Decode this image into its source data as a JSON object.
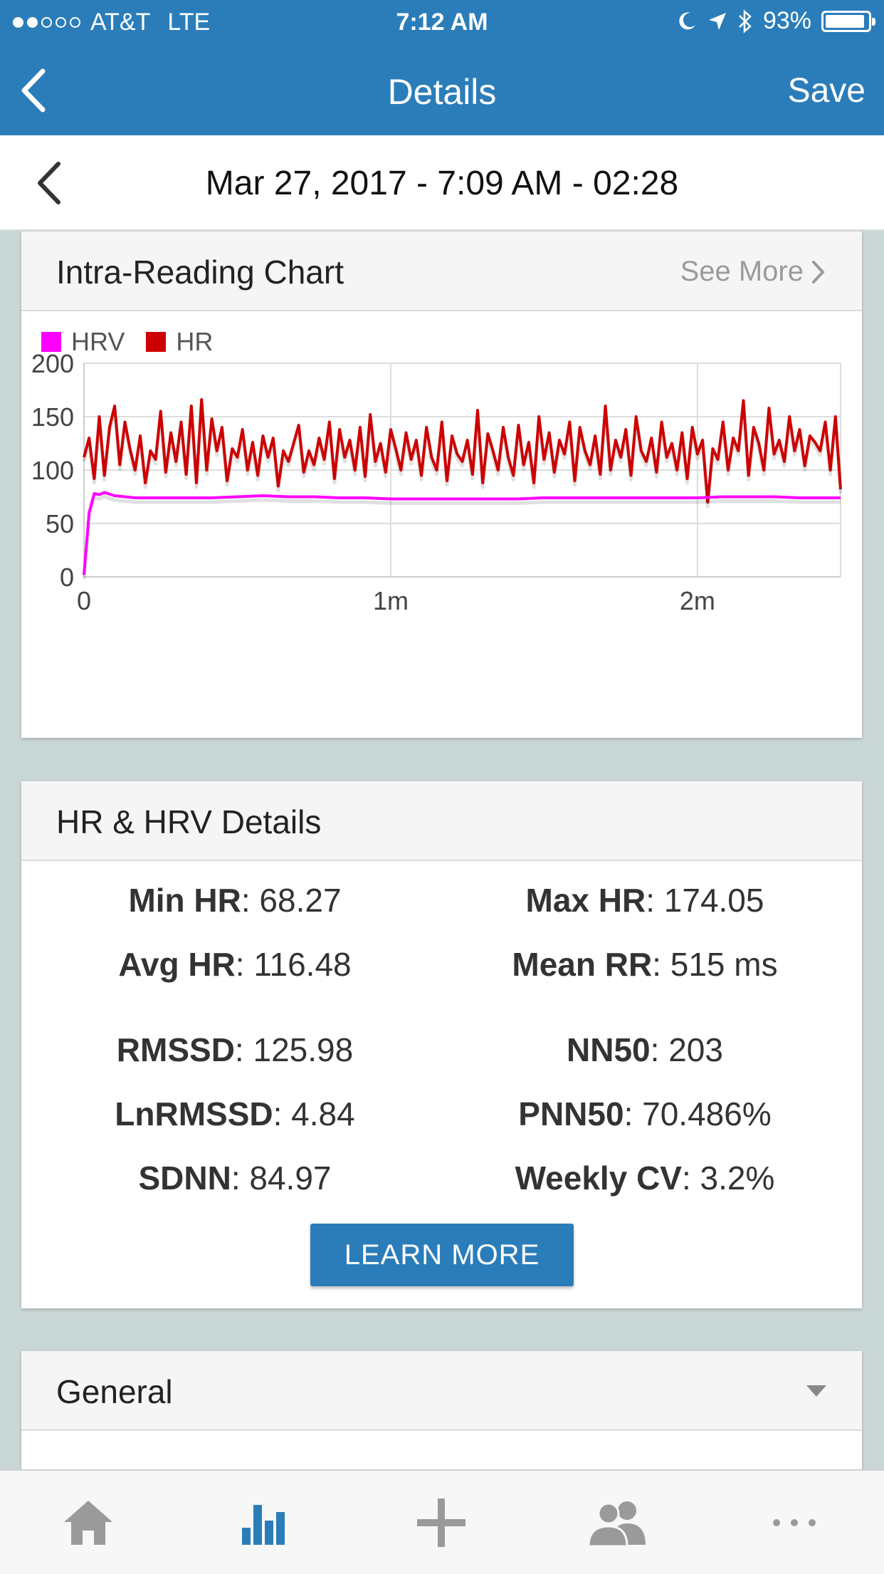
{
  "status_bar": {
    "carrier": "AT&T",
    "network": "LTE",
    "time": "7:12 AM",
    "battery": "93%",
    "battery_level": 0.93,
    "signal_bars_filled": 2,
    "signal_bars_total": 5
  },
  "nav": {
    "title": "Details",
    "save_label": "Save",
    "back_icon": "chevron-left-icon"
  },
  "date_bar": {
    "text": "Mar 27, 2017 - 7:09 AM - 02:28"
  },
  "chart_card": {
    "title": "Intra-Reading Chart",
    "see_more": "See More"
  },
  "chart_data": {
    "type": "line",
    "legend": [
      "HRV",
      "HR"
    ],
    "xlabel": "",
    "ylabel": "",
    "x_ticks": [
      "0",
      "1m",
      "2m"
    ],
    "x_tick_values": [
      0,
      60,
      120
    ],
    "y_ticks": [
      "0",
      "50",
      "100",
      "150",
      "200"
    ],
    "xlim": [
      0,
      148
    ],
    "ylim": [
      0,
      200
    ],
    "grid": true,
    "legend_position": "top-left",
    "series": [
      {
        "name": "HRV",
        "color": "#ff00ff",
        "x": [
          0,
          1,
          2,
          3,
          4,
          6,
          8,
          10,
          15,
          20,
          25,
          30,
          35,
          40,
          45,
          50,
          55,
          60,
          65,
          70,
          75,
          80,
          85,
          90,
          95,
          100,
          105,
          110,
          115,
          120,
          125,
          130,
          135,
          140,
          145,
          148
        ],
        "y": [
          2,
          60,
          78,
          77,
          79,
          76,
          75,
          74,
          74,
          74,
          74,
          75,
          76,
          75,
          75,
          74,
          74,
          73,
          73,
          73,
          73,
          73,
          73,
          74,
          74,
          74,
          74,
          74,
          74,
          74,
          75,
          75,
          75,
          74,
          74,
          74
        ]
      },
      {
        "name": "HR",
        "color": "#cc0000",
        "x": [
          0,
          1,
          2,
          3,
          4,
          5,
          6,
          7,
          8,
          9,
          10,
          11,
          12,
          13,
          14,
          15,
          16,
          17,
          18,
          19,
          20,
          21,
          22,
          23,
          24,
          25,
          26,
          27,
          28,
          29,
          30,
          31,
          32,
          33,
          34,
          35,
          36,
          37,
          38,
          39,
          40,
          41,
          42,
          43,
          44,
          45,
          46,
          47,
          48,
          49,
          50,
          51,
          52,
          53,
          54,
          55,
          56,
          57,
          58,
          59,
          60,
          61,
          62,
          63,
          64,
          65,
          66,
          67,
          68,
          69,
          70,
          71,
          72,
          73,
          74,
          75,
          76,
          77,
          78,
          79,
          80,
          81,
          82,
          83,
          84,
          85,
          86,
          87,
          88,
          89,
          90,
          91,
          92,
          93,
          94,
          95,
          96,
          97,
          98,
          99,
          100,
          101,
          102,
          103,
          104,
          105,
          106,
          107,
          108,
          109,
          110,
          111,
          112,
          113,
          114,
          115,
          116,
          117,
          118,
          119,
          120,
          121,
          122,
          123,
          124,
          125,
          126,
          127,
          128,
          129,
          130,
          131,
          132,
          133,
          134,
          135,
          136,
          137,
          138,
          139,
          140,
          141,
          142,
          143,
          144,
          145,
          146,
          147,
          148
        ],
        "y": [
          112,
          130,
          92,
          150,
          95,
          140,
          160,
          105,
          145,
          120,
          100,
          132,
          88,
          118,
          110,
          155,
          98,
          135,
          108,
          145,
          96,
          160,
          88,
          166,
          100,
          148,
          118,
          140,
          90,
          120,
          112,
          138,
          100,
          126,
          95,
          132,
          112,
          130,
          85,
          118,
          108,
          125,
          142,
          98,
          118,
          105,
          130,
          110,
          145,
          92,
          138,
          112,
          128,
          100,
          140,
          94,
          152,
          108,
          125,
          98,
          138,
          120,
          100,
          135,
          110,
          128,
          95,
          140,
          112,
          100,
          145,
          90,
          132,
          115,
          108,
          128,
          96,
          156,
          88,
          134,
          118,
          100,
          140,
          112,
          95,
          142,
          105,
          126,
          88,
          150,
          110,
          135,
          98,
          128,
          115,
          145,
          90,
          140,
          118,
          105,
          132,
          96,
          160,
          100,
          128,
          112,
          138,
          95,
          150,
          118,
          108,
          130,
          98,
          145,
          112,
          125,
          100,
          135,
          92,
          140,
          115,
          128,
          70,
          120,
          110,
          145,
          100,
          130,
          118,
          165,
          95,
          140,
          125,
          100,
          158,
          115,
          128,
          108,
          150,
          118,
          138,
          104,
          132,
          126,
          118,
          145,
          100,
          150,
          82
        ]
      }
    ]
  },
  "details_card": {
    "title": "HR & HRV Details",
    "learn_more": "LEARN MORE",
    "stats": [
      {
        "label": "Min HR",
        "value": "68.27"
      },
      {
        "label": "Max HR",
        "value": "174.05"
      },
      {
        "label": "Avg HR",
        "value": "116.48"
      },
      {
        "label": "Mean RR",
        "value": "515 ms"
      },
      {
        "label": "RMSSD",
        "value": "125.98"
      },
      {
        "label": "NN50",
        "value": "203"
      },
      {
        "label": "LnRMSSD",
        "value": "4.84"
      },
      {
        "label": "PNN50",
        "value": "70.486%"
      },
      {
        "label": "SDNN",
        "value": "84.97"
      },
      {
        "label": "Weekly CV",
        "value": "3.2%"
      }
    ]
  },
  "general_card": {
    "title": "General"
  },
  "tab_bar": {
    "tabs": [
      {
        "icon": "home-icon",
        "active": false
      },
      {
        "icon": "bar-chart-icon",
        "active": true
      },
      {
        "icon": "plus-icon",
        "active": false
      },
      {
        "icon": "users-icon",
        "active": false
      },
      {
        "icon": "more-icon",
        "active": false
      }
    ],
    "active_color": "#2b7dba",
    "inactive_color": "#9a9a9a"
  }
}
